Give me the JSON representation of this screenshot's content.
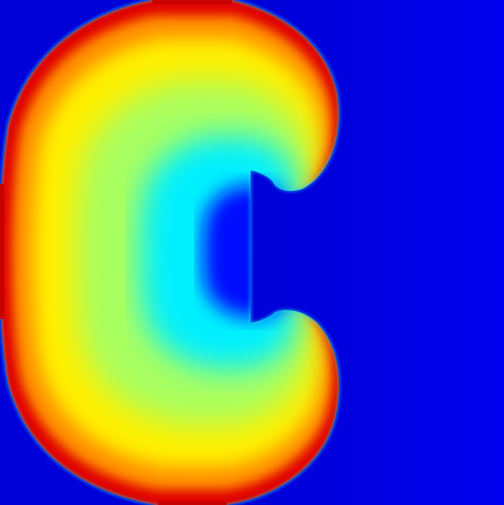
{
  "image": {
    "subject": "colormap-field",
    "colormap": "jet",
    "colors": {
      "background": "#0000d8",
      "background_right": "#0000ee",
      "core_blue": "#0010ff",
      "cyan": "#00f0ff",
      "green_yellow": "#a8ff60",
      "yellow": "#fff000",
      "orange": "#ff8a00",
      "red": "#e00000",
      "edge_red": "#c80000"
    }
  }
}
